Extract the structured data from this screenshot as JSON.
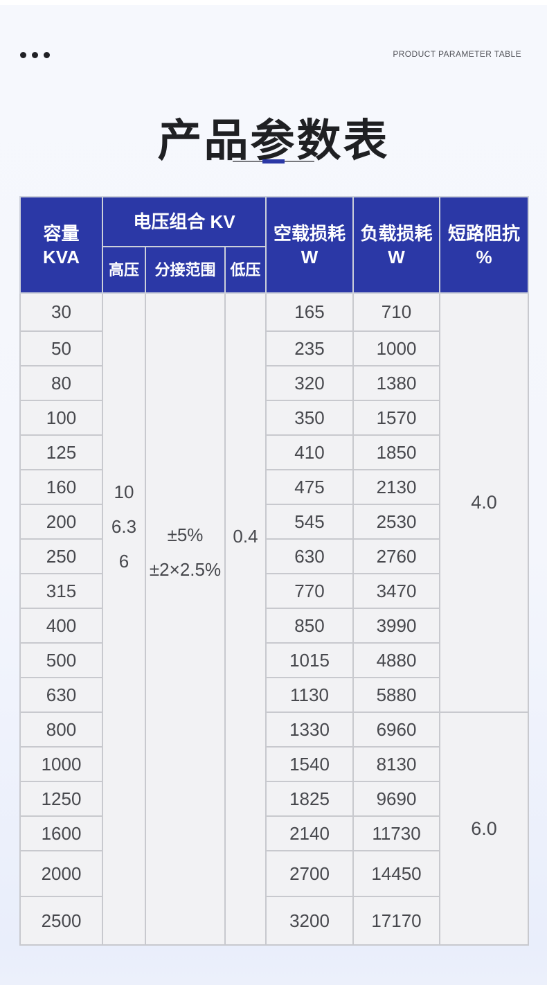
{
  "colors": {
    "header_bg": "#2b38a6",
    "accent": "#2b38a6",
    "page_bg": "#f4f6fc"
  },
  "header": {
    "subtitle_en": "PRODUCT PARAMETER TABLE",
    "title": "产品参数表"
  },
  "table": {
    "head": {
      "capacity_line1": "容量",
      "capacity_line2": "KVA",
      "voltage_group": "电压组合 KV",
      "hv": "高压",
      "tap_range": "分接范围",
      "lv": "低压",
      "no_load_line1": "空载损耗",
      "no_load_line2": "W",
      "load_line1": "负载损耗",
      "load_line2": "W",
      "impedance_line1": "短路阻抗",
      "impedance_line2": "%"
    },
    "merged": {
      "hv_values": [
        "10",
        "6.3",
        "6"
      ],
      "tap_values": [
        "±5%",
        "±2×2.5%"
      ],
      "lv_value": "0.4",
      "impedance_groups": [
        {
          "value": "4.0",
          "row_span": 12
        },
        {
          "value": "6.0",
          "row_span": 6
        }
      ]
    },
    "rows": [
      {
        "kva": "30",
        "no_load": "165",
        "load": "710"
      },
      {
        "kva": "50",
        "no_load": "235",
        "load": "1000"
      },
      {
        "kva": "80",
        "no_load": "320",
        "load": "1380"
      },
      {
        "kva": "100",
        "no_load": "350",
        "load": "1570"
      },
      {
        "kva": "125",
        "no_load": "410",
        "load": "1850"
      },
      {
        "kva": "160",
        "no_load": "475",
        "load": "2130"
      },
      {
        "kva": "200",
        "no_load": "545",
        "load": "2530"
      },
      {
        "kva": "250",
        "no_load": "630",
        "load": "2760"
      },
      {
        "kva": "315",
        "no_load": "770",
        "load": "3470"
      },
      {
        "kva": "400",
        "no_load": "850",
        "load": "3990"
      },
      {
        "kva": "500",
        "no_load": "1015",
        "load": "4880"
      },
      {
        "kva": "630",
        "no_load": "1130",
        "load": "5880"
      },
      {
        "kva": "800",
        "no_load": "1330",
        "load": "6960"
      },
      {
        "kva": "1000",
        "no_load": "1540",
        "load": "8130"
      },
      {
        "kva": "1250",
        "no_load": "1825",
        "load": "9690"
      },
      {
        "kva": "1600",
        "no_load": "2140",
        "load": "11730"
      },
      {
        "kva": "2000",
        "no_load": "2700",
        "load": "14450"
      },
      {
        "kva": "2500",
        "no_load": "3200",
        "load": "17170"
      }
    ]
  }
}
